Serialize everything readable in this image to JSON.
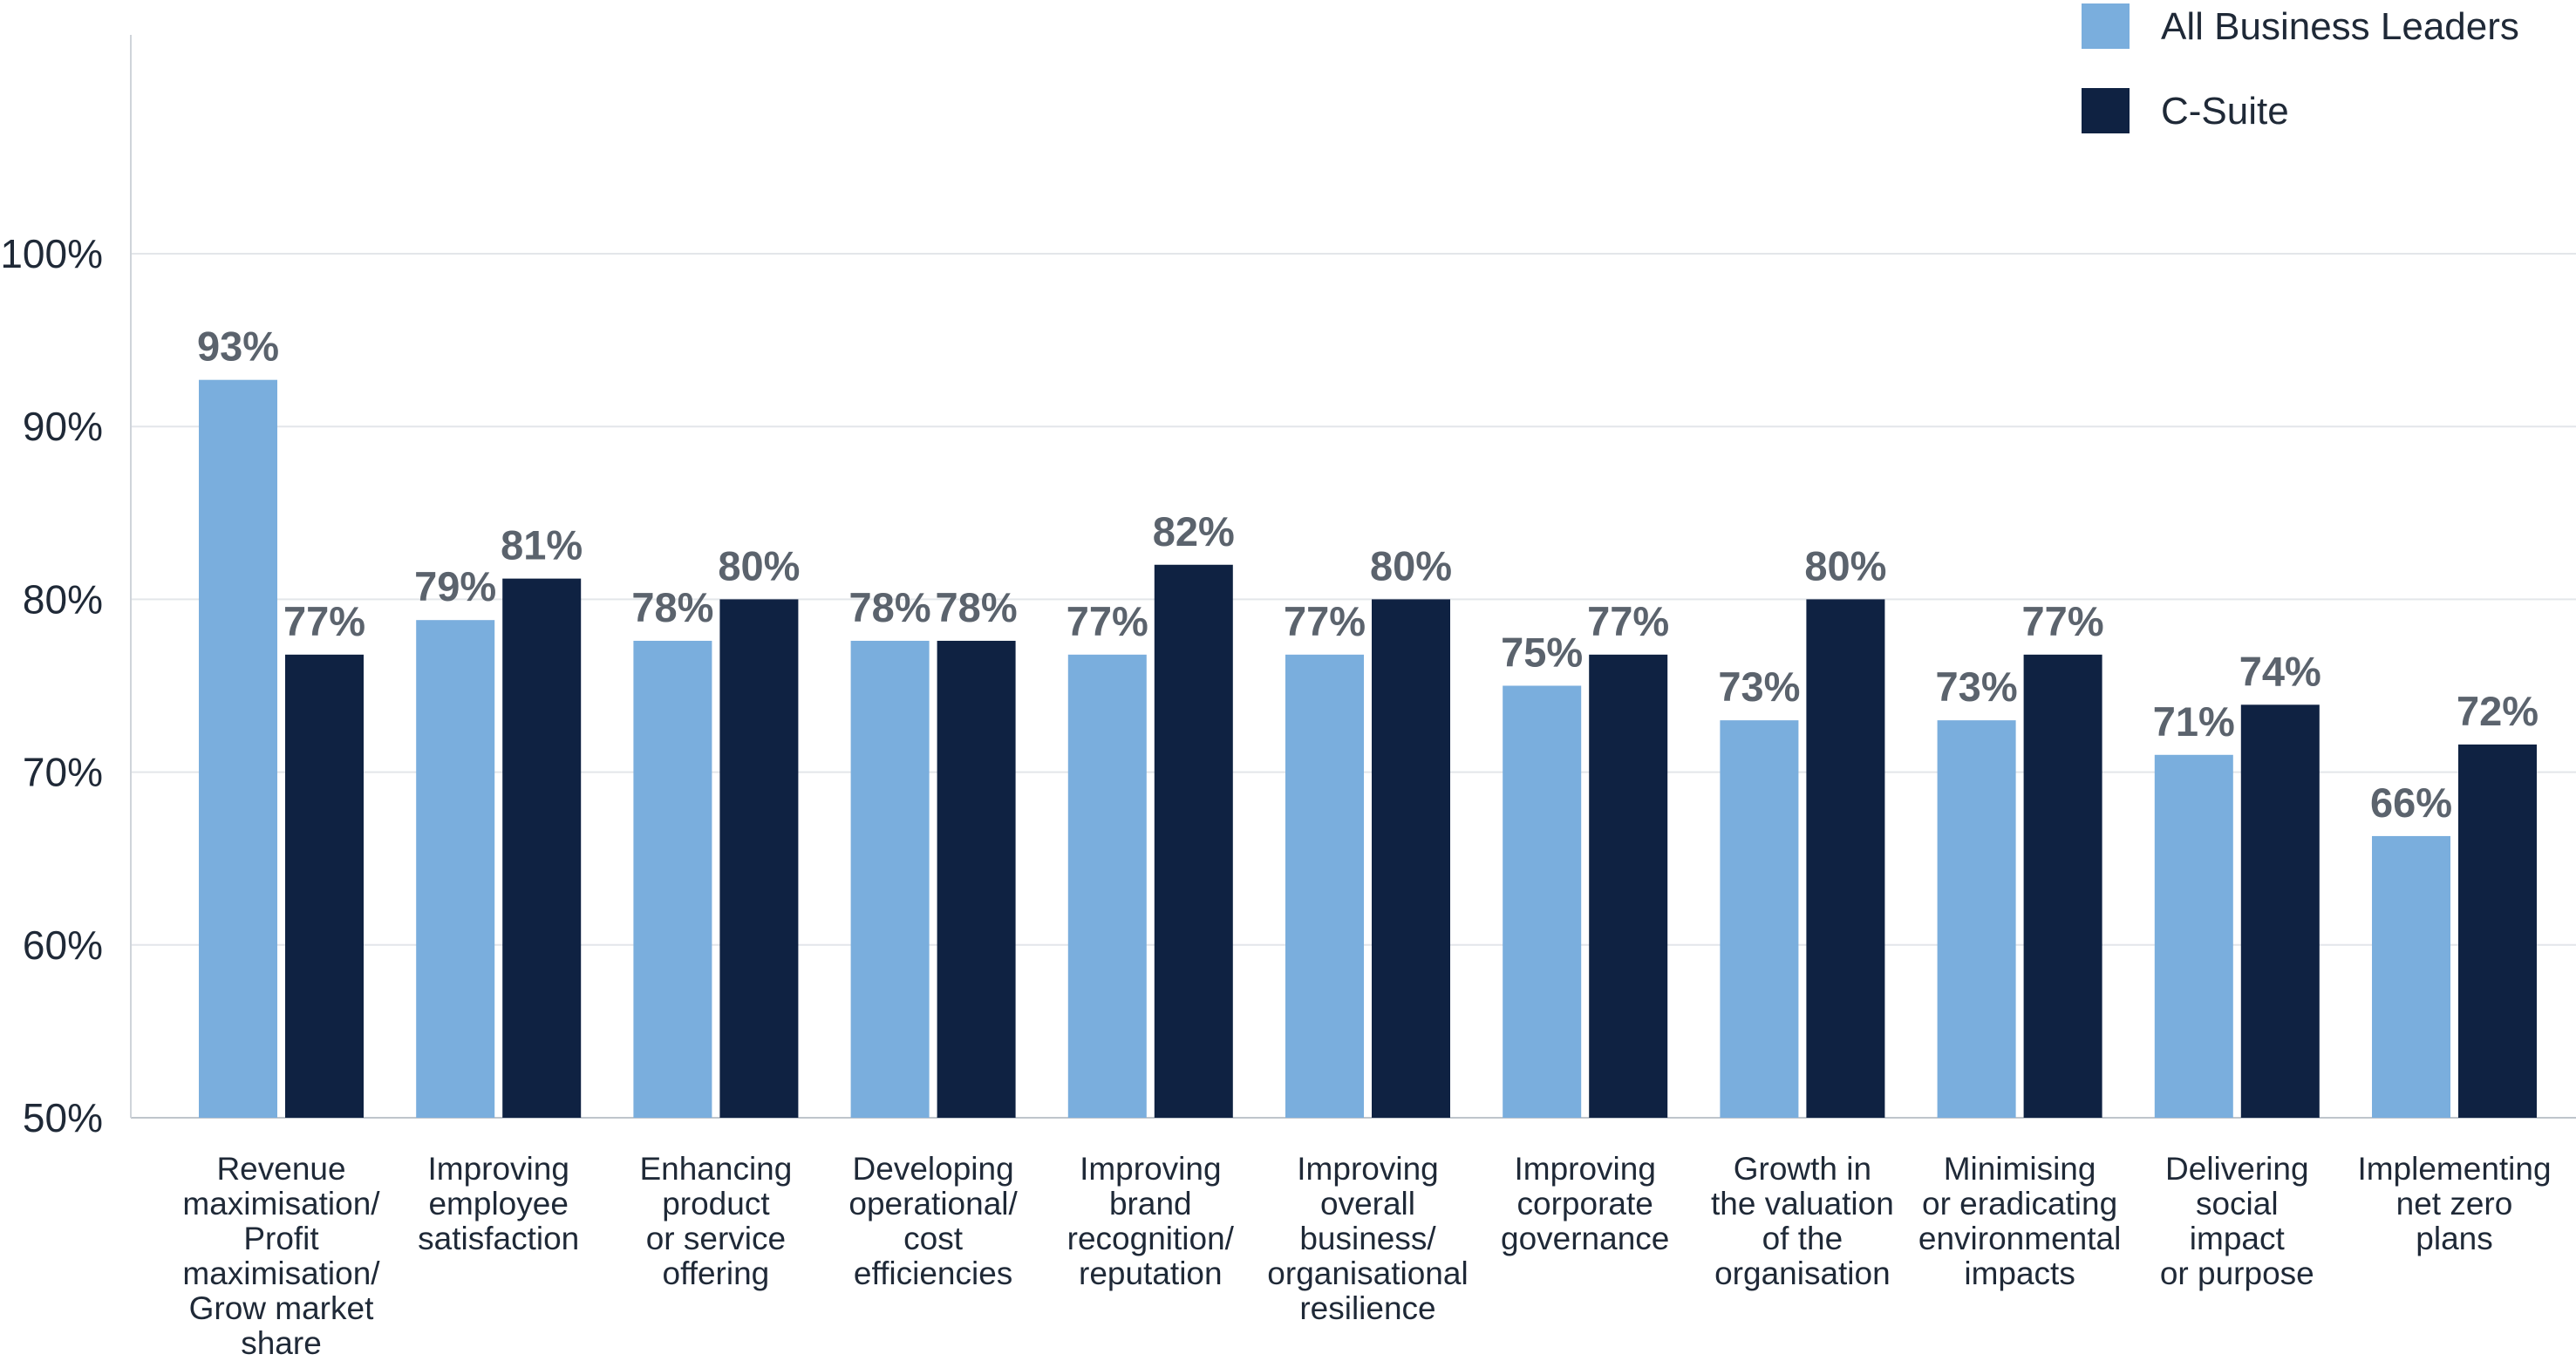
{
  "chart_data": {
    "type": "bar",
    "categories": [
      [
        "Revenue",
        "maximisation/",
        "Profit",
        "maximisation/",
        "Grow market",
        "share"
      ],
      [
        "Improving",
        "employee",
        "satisfaction"
      ],
      [
        "Enhancing",
        "product",
        "or service",
        "offering"
      ],
      [
        "Developing",
        "operational/",
        "cost",
        "efficiencies"
      ],
      [
        "Improving",
        "brand",
        "recognition/",
        "reputation"
      ],
      [
        "Improving",
        "overall",
        "business/",
        "organisational",
        "resilience"
      ],
      [
        "Improving",
        "corporate",
        "governance"
      ],
      [
        "Growth in",
        "the valuation",
        "of the",
        "organisation"
      ],
      [
        "Minimising",
        "or eradicating",
        "environmental",
        "impacts"
      ],
      [
        "Delivering",
        "social",
        "impact",
        "or purpose"
      ],
      [
        "Implementing",
        "net zero",
        "plans"
      ]
    ],
    "series": [
      {
        "name": "All Business Leaders",
        "color": "#7aaedd",
        "values": [
          92.7,
          78.8,
          77.6,
          77.6,
          76.8,
          76.8,
          75.0,
          73.0,
          73.0,
          71.0,
          66.3
        ],
        "labels": [
          "93%",
          "79%",
          "78%",
          "78%",
          "77%",
          "77%",
          "75%",
          "73%",
          "73%",
          "71%",
          "66%"
        ]
      },
      {
        "name": "C-Suite",
        "color": "#0f2242",
        "values": [
          76.8,
          81.2,
          80.0,
          77.6,
          82.0,
          80.0,
          76.8,
          80.0,
          76.8,
          73.9,
          71.6
        ],
        "labels": [
          "77%",
          "81%",
          "80%",
          "78%",
          "82%",
          "80%",
          "77%",
          "80%",
          "77%",
          "74%",
          "72%"
        ]
      }
    ],
    "yticks": [
      "50%",
      "60%",
      "70%",
      "80%",
      "90%",
      "100%"
    ],
    "ytick_values": [
      50,
      60,
      70,
      80,
      90,
      100
    ],
    "ylim": [
      50,
      112.5
    ],
    "grid": true,
    "legend_position": "top-right",
    "title": "",
    "xlabel": "",
    "ylabel": ""
  }
}
